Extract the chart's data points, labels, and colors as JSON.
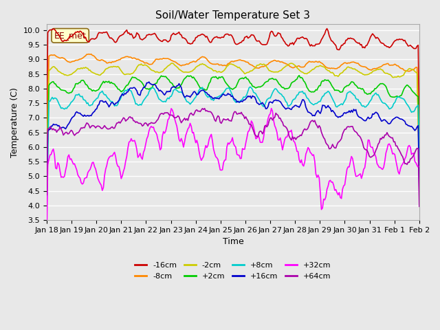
{
  "title": "Soil/Water Temperature Set 3",
  "xlabel": "Time",
  "ylabel": "Temperature (C)",
  "ylim": [
    3.5,
    10.2
  ],
  "yticks": [
    3.5,
    4.0,
    4.5,
    5.0,
    5.5,
    6.0,
    6.5,
    7.0,
    7.5,
    8.0,
    8.5,
    9.0,
    9.5,
    10.0
  ],
  "xtick_labels": [
    "Jan 18",
    "Jan 19",
    "Jan 20",
    "Jan 21",
    "Jan 22",
    "Jan 23",
    "Jan 24",
    "Jan 25",
    "Jan 26",
    "Jan 27",
    "Jan 28",
    "Jan 29",
    "Jan 30",
    "Jan 31",
    "Feb 1",
    "Feb 2"
  ],
  "legend_label": "EE_met",
  "series_labels": [
    "-16cm",
    "-8cm",
    "-2cm",
    "+2cm",
    "+8cm",
    "+16cm",
    "+32cm",
    "+64cm"
  ],
  "series_colors": [
    "#cc0000",
    "#ff8800",
    "#cccc00",
    "#00cc00",
    "#00cccc",
    "#0000cc",
    "#ff00ff",
    "#aa00aa"
  ],
  "background_color": "#e8e8e8",
  "plot_bg_color": "#e8e8e8",
  "grid_color": "#ffffff",
  "n_points": 336,
  "days": 15
}
